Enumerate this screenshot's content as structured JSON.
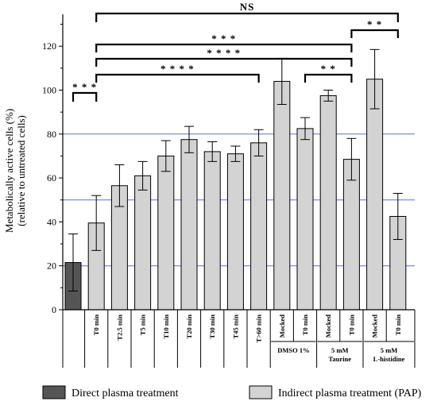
{
  "chart_data": {
    "type": "bar",
    "ylabel_line1": "Metabolically active cells (%)",
    "ylabel_line2": "(relative to untreated cells)",
    "ylim": [
      0,
      130
    ],
    "yticks": [
      "0",
      "20",
      "40",
      "60",
      "80",
      "100",
      "120"
    ],
    "categories": [
      "",
      "T0 min",
      "T2.5 min",
      "T5 min",
      "T10 min",
      "T20 min",
      "T30 min",
      "T45 min",
      "T>60 min",
      "Mocked",
      "T0 min",
      "Mocked",
      "T0 min",
      "Mocked",
      "T0 min"
    ],
    "values": [
      21.5,
      39.5,
      56.5,
      61,
      70,
      77.5,
      72,
      71,
      76,
      104,
      82.5,
      97.5,
      68.5,
      105,
      42.5
    ],
    "errors": [
      13,
      12.5,
      9.5,
      6.5,
      7,
      6,
      4.5,
      3.5,
      6,
      10.5,
      5,
      2.5,
      9.5,
      13.5,
      10.5
    ],
    "bar_kind": [
      "direct",
      "pap",
      "pap",
      "pap",
      "pap",
      "pap",
      "pap",
      "pap",
      "pap",
      "pap",
      "pap",
      "pap",
      "pap",
      "pap",
      "pap"
    ],
    "colors": {
      "direct": "#555555",
      "pap": "#d3d3d3",
      "reference_line": "#5b6ef0"
    },
    "reference_lines": [
      20,
      50,
      80
    ],
    "groups": [
      {
        "label_lines": [
          "DMSO 1%"
        ],
        "start": 9,
        "end": 10
      },
      {
        "label_lines": [
          "5 mM",
          "Taurine"
        ],
        "start": 11,
        "end": 12
      },
      {
        "label_lines": [
          "5 mM",
          "L-histidine"
        ],
        "start": 13,
        "end": 14
      }
    ],
    "significance": [
      {
        "from": 0,
        "to": 1,
        "label": "* * *",
        "y": 98
      },
      {
        "from": 1,
        "to": 8,
        "label": "* * * *",
        "y": 88
      },
      {
        "from": 1,
        "to": 12,
        "label": "* * * *",
        "y": 113
      },
      {
        "from": 10,
        "to": 12,
        "label": "* *",
        "y": 88
      },
      {
        "from": 1,
        "to": 12,
        "label": "* * *",
        "y": 123
      },
      {
        "from": 12,
        "to": 14,
        "label": "* *",
        "y": 126
      },
      {
        "from": 1,
        "to": 14,
        "label": "NS",
        "y": 135
      }
    ],
    "legend": [
      {
        "label": "Direct plasma treatment",
        "kind": "direct"
      },
      {
        "label": "Indirect plasma treatment (PAP)",
        "kind": "pap"
      }
    ]
  }
}
